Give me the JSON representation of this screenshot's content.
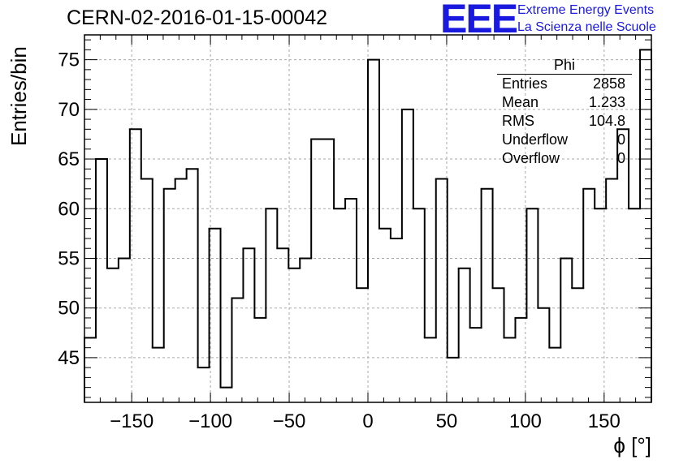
{
  "title": "CERN-02-2016-01-15-00042",
  "logo": {
    "mark": "EEE",
    "line1": "Extreme Energy Events",
    "line2": "La Scienza nelle Scuole"
  },
  "stats": {
    "title": "Phi",
    "rows": [
      {
        "label": "Entries",
        "value": "2858"
      },
      {
        "label": "Mean",
        "value": "1.233"
      },
      {
        "label": "RMS",
        "value": "104.8"
      },
      {
        "label": "Underflow",
        "value": "0"
      },
      {
        "label": "Overflow",
        "value": "0"
      }
    ]
  },
  "chart_data": {
    "type": "histogram-step",
    "title": "CERN-02-2016-01-15-00042",
    "xlabel": "ϕ [°]",
    "ylabel": "Entries/bin",
    "xlim": [
      -180,
      180
    ],
    "ylim": [
      40.5,
      77.5
    ],
    "bin_width": 7.2,
    "x_ticks": [
      -150,
      -100,
      -50,
      0,
      50,
      100,
      150
    ],
    "x_tick_labels": [
      "−150",
      "−100",
      "−50",
      "0",
      "50",
      "100",
      "150"
    ],
    "y_ticks": [
      45,
      50,
      55,
      60,
      65,
      70,
      75
    ],
    "grid": true,
    "line_color": "#000000",
    "bin_contents": [
      47,
      65,
      54,
      55,
      68,
      63,
      46,
      62,
      63,
      64,
      44,
      58,
      42,
      51,
      56,
      49,
      60,
      56,
      54,
      55,
      67,
      67,
      60,
      61,
      52,
      75,
      58,
      57,
      70,
      60,
      47,
      63,
      45,
      54,
      48,
      62,
      52,
      47,
      49,
      60,
      50,
      46,
      55,
      52,
      62,
      60,
      63,
      68,
      60,
      76
    ]
  }
}
